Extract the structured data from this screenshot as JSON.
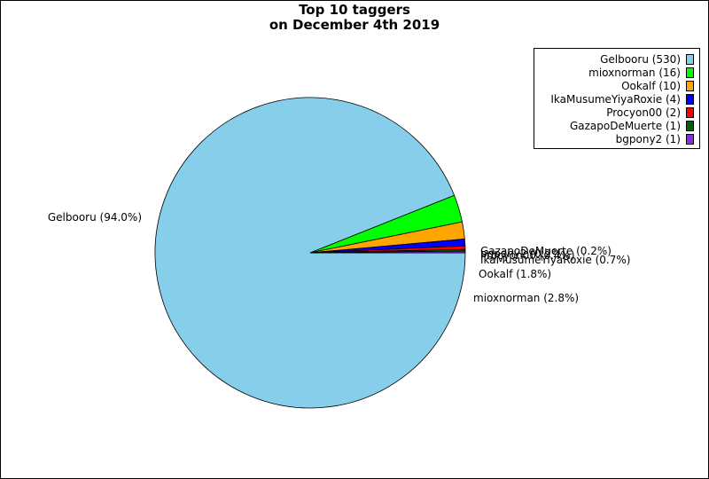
{
  "chart_data": {
    "type": "pie",
    "title": [
      "Top 10 taggers",
      "on December 4th 2019"
    ],
    "start_angle_deg": 0,
    "direction": "clockwise",
    "legend_position": "top-right",
    "slices": [
      {
        "label": "Gelbooru",
        "count": 530,
        "pct_label": "Gelbooru (94.0%)",
        "legend_label": "Gelbooru (530)",
        "color": "#87CEEB"
      },
      {
        "label": "mioxnorman",
        "count": 16,
        "pct_label": "mioxnorman (2.8%)",
        "legend_label": "mioxnorman (16)",
        "color": "#00FF00"
      },
      {
        "label": "Ookalf",
        "count": 10,
        "pct_label": "Ookalf (1.8%)",
        "legend_label": "Ookalf (10)",
        "color": "#FFA500"
      },
      {
        "label": "IkaMusumeYiyaRoxie",
        "count": 4,
        "pct_label": "IkaMusumeYiyaRoxie (0.7%)",
        "legend_label": "IkaMusumeYiyaRoxie (4)",
        "color": "#0000FF"
      },
      {
        "label": "Procyon00",
        "count": 2,
        "pct_label": "Procyon00 (0.4%)",
        "legend_label": "Procyon00 (2)",
        "color": "#FF0000"
      },
      {
        "label": "GazapoDeMuerte",
        "count": 1,
        "pct_label": "GazapoDeMuerte (0.2%)",
        "legend_label": "GazapoDeMuerte (1)",
        "color": "#006400"
      },
      {
        "label": "bgpony2",
        "count": 1,
        "pct_label": "bgpony2 (0.2%)",
        "legend_label": "bgpony2 (1)",
        "color": "#8A2BE2"
      }
    ]
  }
}
